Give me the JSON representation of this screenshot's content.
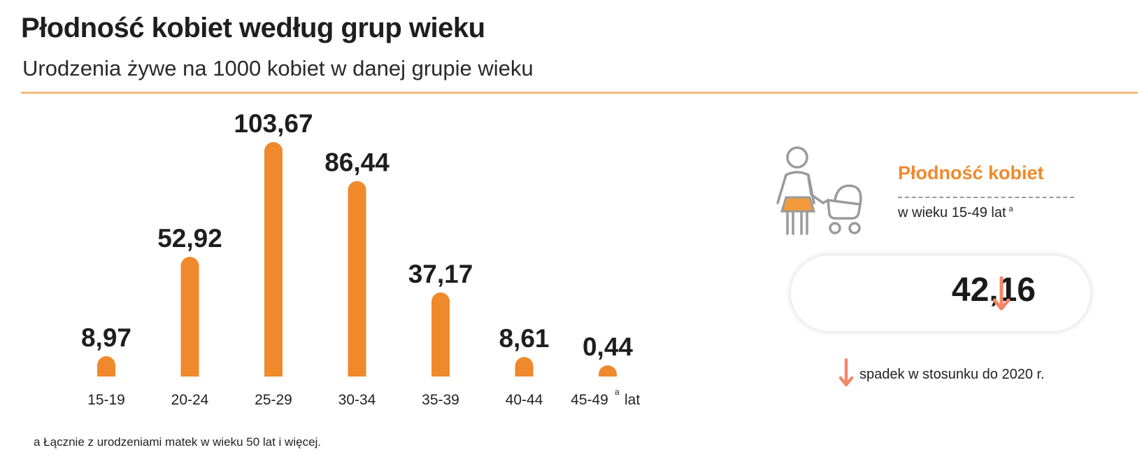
{
  "header": {
    "title": "Płodność kobiet według grup wieku",
    "subtitle": "Urodzenia żywe na 1000 kobiet w danej grupie wieku"
  },
  "chart_data": {
    "type": "bar",
    "categories": [
      "15-19",
      "20-24",
      "25-29",
      "30-34",
      "35-39",
      "40-44",
      "45-49"
    ],
    "values": [
      8.97,
      52.92,
      103.67,
      86.44,
      37.17,
      8.61,
      0.44
    ],
    "value_labels": [
      "8,97",
      "52,92",
      "103,67",
      "86,44",
      "37,17",
      "8,61",
      "0,44"
    ],
    "last_category_suffix": "lat",
    "last_category_marker": "a",
    "bar_color": "#f0892c",
    "grid": false
  },
  "footnote": "a Łącznie z urodzeniami matek w wieku 50 lat i więcej.",
  "side_panel": {
    "icon": "mother-with-stroller-icon",
    "title": "Płodność kobiet",
    "subtitle": "w wieku 15-49 lat",
    "subtitle_marker": "a",
    "value": "42,16",
    "trend_icon": "arrow-down-icon",
    "trend_color": "#f4876a",
    "legend_text": "spadek w stosunku do 2020 r."
  }
}
